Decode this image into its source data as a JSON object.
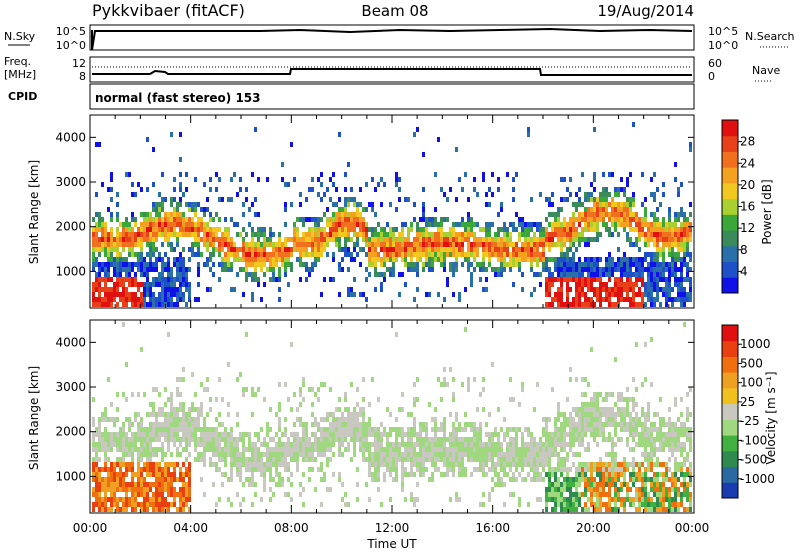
{
  "header": {
    "radar": "Pykkvibaer (fitACF)",
    "beam": "Beam 08",
    "date": "19/Aug/2014"
  },
  "nsky_panel": {
    "left_label": "N.Sky",
    "left_ticks": [
      "10^5",
      "10^0"
    ],
    "right_ticks": [
      "10^5",
      "10^0"
    ],
    "right_label": "N.Search"
  },
  "freq_panel": {
    "left_label_top": "Freq.",
    "left_label_bottom": "[MHz]",
    "left_ticks": [
      "12",
      "8"
    ],
    "right_ticks": [
      "60",
      "0"
    ],
    "right_label": "Nave"
  },
  "cpid": {
    "label": "CPID",
    "text": "normal (fast stereo) 153"
  },
  "x_axis": {
    "label": "Time UT",
    "ticks": [
      "00:00",
      "04:00",
      "08:00",
      "12:00",
      "16:00",
      "20:00",
      "00:00"
    ]
  },
  "chart_data": [
    {
      "type": "heatmap",
      "name": "power",
      "ylabel": "Slant Range [km]",
      "yticks": [
        "1000",
        "2000",
        "3000",
        "4000"
      ],
      "ylim": [
        180,
        4500
      ],
      "xlim": [
        0,
        24
      ],
      "colorbar_label": "Power [dB]",
      "colorbar_ticks": [
        "4",
        "8",
        "12",
        "16",
        "20",
        "24",
        "28"
      ],
      "colorbar_colors": [
        "#1010e8",
        "#1e50c8",
        "#2a70a8",
        "#3a8a5a",
        "#3aa838",
        "#a8d030",
        "#f0c820",
        "#f4a020",
        "#f07020",
        "#e84018",
        "#e01010"
      ]
    },
    {
      "type": "heatmap",
      "name": "velocity",
      "ylabel": "Slant Range [km]",
      "yticks": [
        "1000",
        "2000",
        "3000",
        "4000"
      ],
      "ylim": [
        180,
        4500
      ],
      "xlim": [
        0,
        24
      ],
      "colorbar_label": "Velocity [m s⁻¹]",
      "colorbar_ticks": [
        "1000",
        "500",
        "100",
        "25",
        "-25",
        "-100",
        "-500",
        "-1000"
      ],
      "colorbar_colors": [
        "#1a3cb0",
        "#2a6aa0",
        "#2f8a50",
        "#40b040",
        "#a0d880",
        "#c8c8c0",
        "#f0c020",
        "#f0a020",
        "#f07010",
        "#e84010",
        "#e01010"
      ]
    }
  ]
}
